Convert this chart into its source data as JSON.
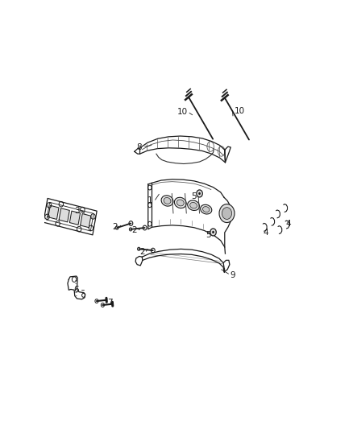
{
  "background_color": "#ffffff",
  "fig_width": 4.38,
  "fig_height": 5.33,
  "dpi": 100,
  "line_color": "#1a1a1a",
  "label_fontsize": 7.5,
  "parts": {
    "1": {
      "lp": [
        0.388,
        0.548
      ]
    },
    "2a": {
      "lp": [
        0.258,
        0.468
      ]
    },
    "2b": {
      "lp": [
        0.33,
        0.46
      ]
    },
    "2c": {
      "lp": [
        0.358,
        0.392
      ]
    },
    "3": {
      "lp": [
        0.12,
        0.518
      ]
    },
    "4a": {
      "lp": [
        0.81,
        0.452
      ]
    },
    "4b": {
      "lp": [
        0.892,
        0.478
      ]
    },
    "5a": {
      "lp": [
        0.548,
        0.562
      ]
    },
    "5b": {
      "lp": [
        0.6,
        0.445
      ]
    },
    "6": {
      "lp": [
        0.118,
        0.278
      ]
    },
    "7": {
      "lp": [
        0.242,
        0.24
      ]
    },
    "8": {
      "lp": [
        0.348,
        0.71
      ]
    },
    "9": {
      "lp": [
        0.69,
        0.322
      ]
    },
    "10a": {
      "lp": [
        0.505,
        0.818
      ]
    },
    "10b": {
      "lp": [
        0.715,
        0.82
      ]
    }
  }
}
